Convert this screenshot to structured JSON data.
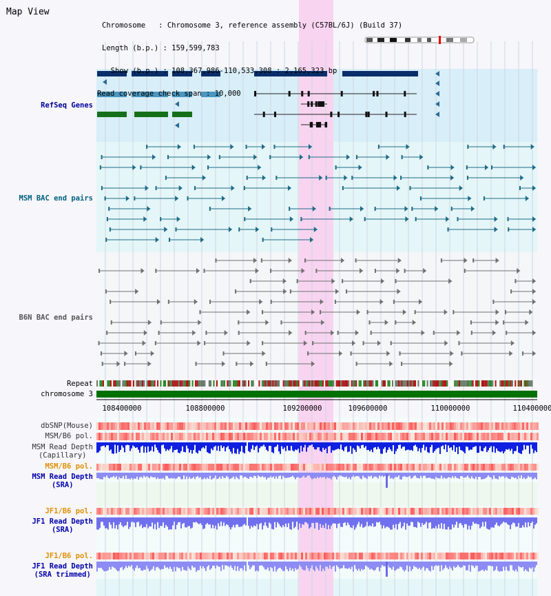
{
  "title": "Map View",
  "info": {
    "chromosome": "Chromosome   : Chromosome 3, reference assembly (C57BL/6J) (Build 37)",
    "length": "Length (b.p.) : 159,599,783",
    "show": "  Show (b.p.) : 108,367,986-110,533,308 : 2,165,323 bp",
    "coverage": "Read coverage check span : 10,000"
  },
  "tracks": {
    "refseq": "RefSeq Genes",
    "msm_bac": "MSM BAC end pairs",
    "b6n_bac": "B6N BAC end pairs",
    "repeat": "Repeat",
    "chromosome": "chromosome 3",
    "dbsnp": "dbSNP(Mouse)",
    "msm_pol": "MSM/B6 pol.",
    "msm_depth_cap_1": "MSM Read Depth",
    "msm_depth_cap_2": "(Capillary)",
    "msm_pol2": "MSM/B6 pol.",
    "msm_depth_sra_1": "MSM Read Depth",
    "msm_depth_sra_2": "(SRA)",
    "jf1_pol": "JF1/B6 pol.",
    "jf1_depth_sra_1": "JF1 Read Depth",
    "jf1_depth_sra_2": "(SRA)",
    "jf1_pol2": "JF1/B6 pol.",
    "jf1_trim_1": "JF1 Read Depth",
    "jf1_trim_2": "(SRA trimmed)"
  },
  "axis_ticks": [
    "108400000",
    "108800000",
    "109200000",
    "109600000",
    "110000000",
    "110400000"
  ],
  "colors": {
    "refseq_label": "#000099",
    "msm_label": "#006080",
    "b6n_label": "#555555",
    "pol_label": "#e09000",
    "sra_label": "#0000aa",
    "highlight": "#f8d4f0",
    "chromosome": "#007000"
  }
}
